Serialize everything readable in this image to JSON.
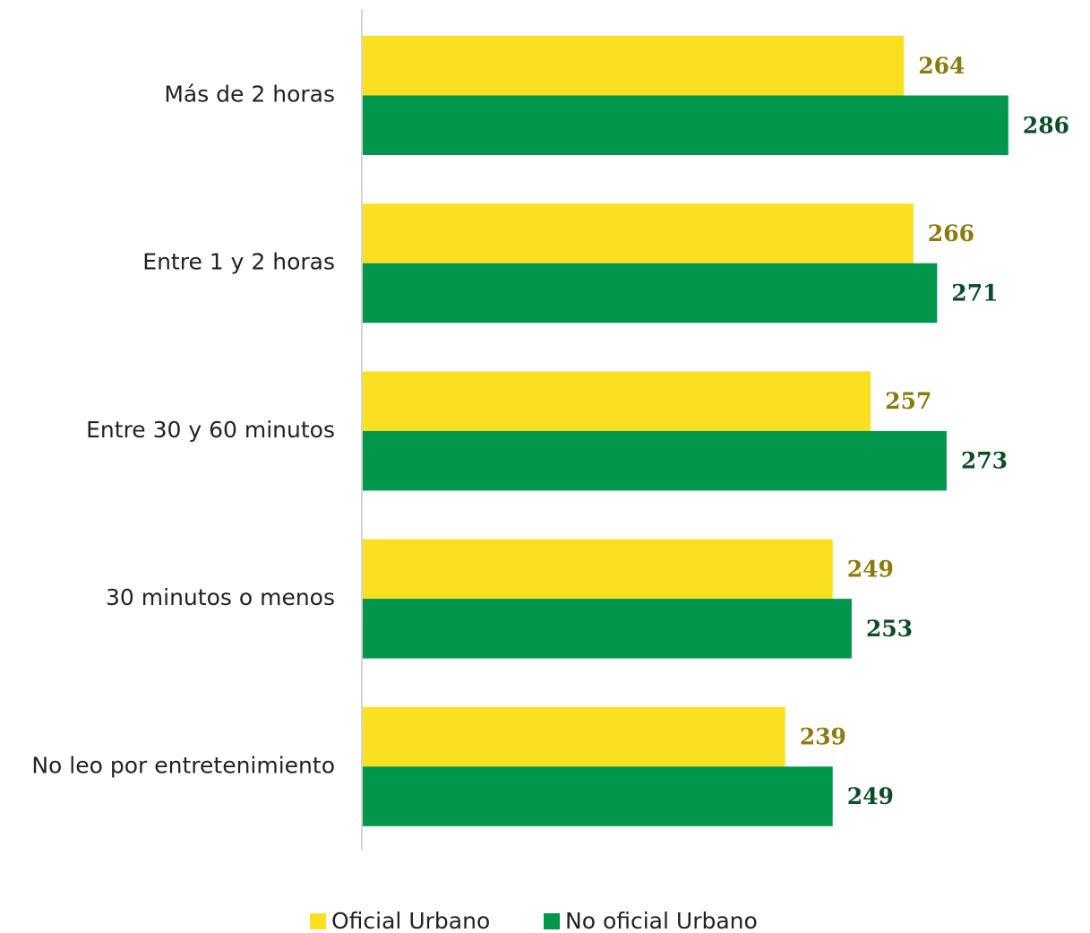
{
  "chart_data": {
    "type": "bar",
    "orientation": "horizontal",
    "categories": [
      "Más de 2 horas",
      "Entre 1 y 2 horas",
      "Entre 30 y 60 minutos",
      "30 minutos o menos",
      "No leo por entretenimiento"
    ],
    "series": [
      {
        "name": "Oficial Urbano",
        "color": "#FAE021",
        "label_color": "#8B7B0C",
        "values": [
          264,
          266,
          257,
          249,
          239
        ]
      },
      {
        "name": "No oficial Urbano",
        "color": "#00964B",
        "label_color": "#0B4D26",
        "values": [
          286,
          271,
          273,
          253,
          249
        ]
      }
    ],
    "xlim": [
      150,
      290
    ],
    "grid": false,
    "legend_position": "bottom-center",
    "title": "",
    "xlabel": "",
    "ylabel": ""
  }
}
